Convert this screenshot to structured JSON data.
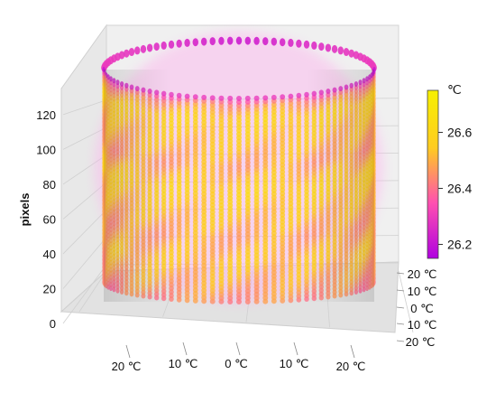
{
  "chart_data": {
    "type": "scatter",
    "projection": "3d",
    "colormap": "plasma",
    "title": "",
    "zlabel": "pixels",
    "zlim": [
      0,
      135
    ],
    "z_ticks": [
      "0",
      "20",
      "40",
      "60",
      "80",
      "100",
      "120"
    ],
    "x_ticks": [
      "20 ℃",
      "10 ℃",
      "0 ℃",
      "10 ℃",
      "20 ℃"
    ],
    "y_ticks": [
      "20 ℃",
      "10 ℃",
      "0 ℃",
      "10 ℃",
      "20 ℃"
    ],
    "grid": true,
    "colorbar": {
      "unit": "℃",
      "range": [
        26.15,
        26.75
      ],
      "ticks": [
        "26.2",
        "26.4",
        "26.6"
      ],
      "tick_values": [
        26.2,
        26.4,
        26.6
      ],
      "colors": [
        "#b000e0",
        "#ff50b0",
        "#ffcc20",
        "#f6f000"
      ]
    },
    "series": [
      {
        "shape": "cylinder surface",
        "angular_columns": 96,
        "height_rows": 135,
        "height_range": [
          0,
          128
        ],
        "value_range": [
          26.15,
          26.75
        ],
        "temperature_by_height": [
          {
            "z": 0,
            "value": 26.45
          },
          {
            "z": 10,
            "value": 26.5
          },
          {
            "z": 25,
            "value": 26.55
          },
          {
            "z": 40,
            "value": 26.5
          },
          {
            "z": 55,
            "value": 26.55
          },
          {
            "z": 70,
            "value": 26.6
          },
          {
            "z": 85,
            "value": 26.5
          },
          {
            "z": 100,
            "value": 26.55
          },
          {
            "z": 115,
            "value": 26.6
          },
          {
            "z": 125,
            "value": 26.45
          },
          {
            "z": 128,
            "value": 26.25
          }
        ]
      }
    ]
  }
}
